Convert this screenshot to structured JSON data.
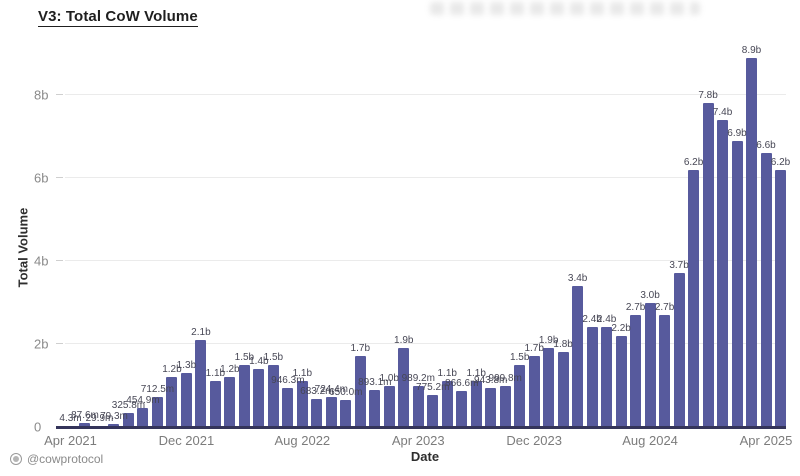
{
  "title": "V3: Total CoW Volume",
  "footer": {
    "handle": "@cowprotocol"
  },
  "chart_data": {
    "type": "bar",
    "title": "V3: Total CoW Volume",
    "xlabel": "Date",
    "ylabel": "Total Volume",
    "grid": true,
    "legend": "none",
    "bar_color": "#575a9d",
    "axis_line_color": "#34345a",
    "ylim_b": [
      0,
      9
    ],
    "ytick_values_b": [
      0,
      2,
      4,
      6,
      8
    ],
    "ytick_labels": [
      "0",
      "2b",
      "4b",
      "6b",
      "8b"
    ],
    "xtick_every_n_bars": 8,
    "xtick_labels": [
      "Apr 2021",
      "Dec 2021",
      "Aug 2022",
      "Apr 2023",
      "Dec 2023",
      "Aug 2024",
      "Apr 2025"
    ],
    "categories": [
      "Apr 2021",
      "May 2021",
      "Jun 2021",
      "Jul 2021",
      "Aug 2021",
      "Sep 2021",
      "Oct 2021",
      "Nov 2021",
      "Dec 2021",
      "Jan 2022",
      "Feb 2022",
      "Mar 2022",
      "Apr 2022",
      "May 2022",
      "Jun 2022",
      "Jul 2022",
      "Aug 2022",
      "Sep 2022",
      "Oct 2022",
      "Nov 2022",
      "Dec 2022",
      "Jan 2023",
      "Feb 2023",
      "Mar 2023",
      "Apr 2023",
      "May 2023",
      "Jun 2023",
      "Jul 2023",
      "Aug 2023",
      "Sep 2023",
      "Oct 2023",
      "Nov 2023",
      "Dec 2023",
      "Jan 2024",
      "Feb 2024",
      "Mar 2024",
      "Apr 2024",
      "May 2024",
      "Jun 2024",
      "Jul 2024",
      "Aug 2024",
      "Sep 2024",
      "Oct 2024",
      "Nov 2024",
      "Dec 2024",
      "Jan 2025",
      "Feb 2025",
      "Mar 2025",
      "Apr 2025",
      "May 2025"
    ],
    "values_b": [
      0.0043,
      0.0876,
      0.0299,
      0.0793,
      0.3258,
      0.4549,
      0.7125,
      1.2,
      1.3,
      2.1,
      1.1,
      1.2,
      1.5,
      1.4,
      1.5,
      0.9463,
      1.1,
      0.6832,
      0.7244,
      0.65,
      1.7,
      0.8931,
      1.0,
      1.9,
      0.9892,
      0.7752,
      1.1,
      0.8666,
      1.1,
      0.9438,
      0.9998,
      1.5,
      1.7,
      1.9,
      1.8,
      3.4,
      2.4,
      2.4,
      2.2,
      2.7,
      3.0,
      2.7,
      3.7,
      6.2,
      7.8,
      7.4,
      6.9,
      8.9,
      6.6,
      6.2
    ],
    "bar_labels": [
      "4.3m",
      "87.6m",
      "29.9m",
      "79.3m",
      "325.8m",
      "454.9m",
      "712.5m",
      "1.2b",
      "1.3b",
      "2.1b",
      "1.1b",
      "1.2b",
      "1.5b",
      "1.4b",
      "1.5b",
      "946.3m",
      "1.1b",
      "683.2m",
      "724.4m",
      "650.0m",
      "1.7b",
      "893.1m",
      "1.0b",
      "1.9b",
      "989.2m",
      "775.2m",
      "1.1b",
      "866.6m",
      "1.1b",
      "943.8m",
      "999.8m",
      "1.5b",
      "1.7b",
      "1.9b",
      "1.8b",
      "3.4b",
      "2.4b",
      "2.4b",
      "2.2b",
      "2.7b",
      "3.0b",
      "2.7b",
      "3.7b",
      "6.2b",
      "7.8b",
      "7.4b",
      "6.9b",
      "8.9b",
      "6.6b",
      "6.2b"
    ]
  }
}
